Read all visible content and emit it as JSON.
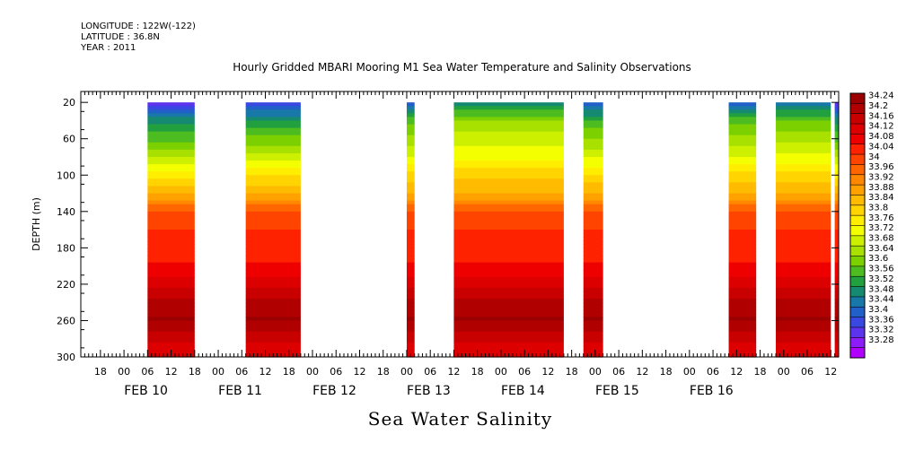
{
  "header": {
    "longitude": "LONGITUDE : 122W(-122)",
    "latitude": "LATITUDE : 36.8N",
    "year": "YEAR : 2011"
  },
  "chart_data": {
    "type": "heatmap",
    "title": "Hourly Gridded MBARI Mooring M1 Sea Water Temperature and Salinity Observations",
    "xlabel": "Sea Water Salinity",
    "ylabel": "DEPTH (m)",
    "x_start_hour_label": "00 FEB 10",
    "xlim_hours_from_feb10_00": [
      -11,
      182
    ],
    "ylim": [
      300,
      8
    ],
    "y_ticks": [
      20,
      60,
      100,
      140,
      180,
      220,
      260,
      300
    ],
    "hour_tick_labels": [
      "06",
      "12",
      "18",
      "00"
    ],
    "day_labels": [
      "FEB 10",
      "FEB 11",
      "FEB 12",
      "FEB 13",
      "FEB 14",
      "FEB 15",
      "FEB 16"
    ],
    "colorbar_levels": [
      "34.24",
      "34.2",
      "34.16",
      "34.12",
      "34.08",
      "34.04",
      "34",
      "33.96",
      "33.92",
      "33.88",
      "33.84",
      "33.8",
      "33.76",
      "33.72",
      "33.68",
      "33.64",
      "33.6",
      "33.56",
      "33.52",
      "33.48",
      "33.44",
      "33.4",
      "33.36",
      "33.32",
      "33.28"
    ],
    "colormap": [
      "#9a0000",
      "#b00000",
      "#c80000",
      "#dc0000",
      "#ee0000",
      "#ff2200",
      "#ff4400",
      "#ff6600",
      "#ff8800",
      "#ffa200",
      "#ffbb00",
      "#ffd400",
      "#ffee00",
      "#f4ff00",
      "#ccf000",
      "#a8e000",
      "#7cd000",
      "#4cbc20",
      "#22a040",
      "#168a70",
      "#1878a8",
      "#2060c8",
      "#3848e0",
      "#5c34ee",
      "#8c1cf8",
      "#b000ff"
    ],
    "depth_profile": [
      {
        "depth": 20,
        "value": 33.34
      },
      {
        "depth": 40,
        "value": 33.52
      },
      {
        "depth": 60,
        "value": 33.6
      },
      {
        "depth": 80,
        "value": 33.68
      },
      {
        "depth": 100,
        "value": 33.78
      },
      {
        "depth": 120,
        "value": 33.86
      },
      {
        "depth": 140,
        "value": 33.99
      },
      {
        "depth": 160,
        "value": 34.02
      },
      {
        "depth": 180,
        "value": 34.04
      },
      {
        "depth": 200,
        "value": 34.06
      },
      {
        "depth": 220,
        "value": 34.12
      },
      {
        "depth": 240,
        "value": 34.18
      },
      {
        "depth": 260,
        "value": 34.21
      },
      {
        "depth": 280,
        "value": 34.14
      },
      {
        "depth": 300,
        "value": 34.1
      }
    ],
    "data_segments": [
      {
        "start_hour": 6,
        "end_hour": 18,
        "surface_offset": 0.0
      },
      {
        "start_hour": 31,
        "end_hour": 45,
        "surface_offset": 0.04
      },
      {
        "start_hour": 72,
        "end_hour": 74,
        "surface_offset": 0.1
      },
      {
        "start_hour": 84,
        "end_hour": 112,
        "surface_offset": 0.16
      },
      {
        "start_hour": 117,
        "end_hour": 122,
        "surface_offset": 0.08
      },
      {
        "start_hour": 154,
        "end_hour": 161,
        "surface_offset": 0.1
      },
      {
        "start_hour": 166,
        "end_hour": 180,
        "surface_offset": 0.12
      },
      {
        "start_hour": 181,
        "end_hour": 182,
        "surface_offset": 0.0
      }
    ]
  }
}
